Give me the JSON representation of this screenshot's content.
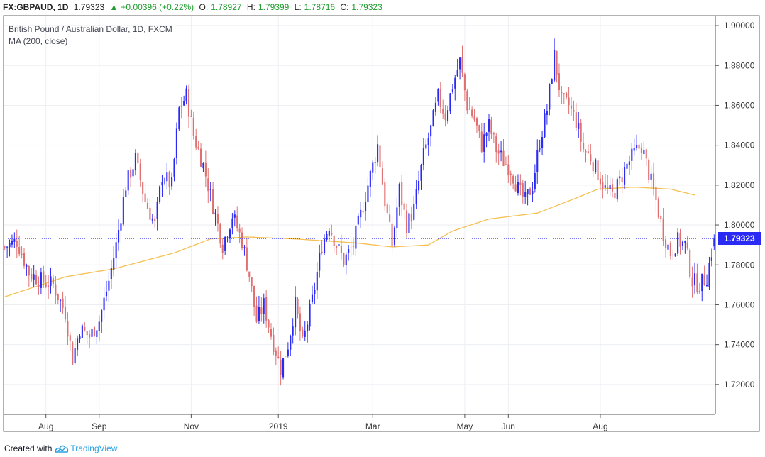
{
  "header": {
    "symbol": "FX:GBPAUD, 1D",
    "last": "1.79323",
    "change": "+0.00396 (+0.22%)",
    "open_label": "O:",
    "open": "1.78927",
    "high_label": "H:",
    "high": "1.79399",
    "low_label": "L:",
    "low": "1.78716",
    "close_label": "C:",
    "close": "1.79323"
  },
  "legend": {
    "title": "British Pound / Australian Dollar, 1D, FXCM",
    "indicator": "MA (200, close)"
  },
  "footer": {
    "created_with": "Created with",
    "brand": "TradingView"
  },
  "colors": {
    "up": "#2a2af5",
    "down": "#e07070",
    "ma": "#f5c051",
    "grid": "#eceef2",
    "price_line": "#2a2af5"
  },
  "chart_data": {
    "type": "candlestick",
    "title": "British Pound / Australian Dollar, 1D, FXCM",
    "ylim": [
      1.705,
      1.905
    ],
    "y_ticks": [
      "1.72000",
      "1.74000",
      "1.76000",
      "1.78000",
      "1.80000",
      "1.82000",
      "1.84000",
      "1.86000",
      "1.88000",
      "1.90000"
    ],
    "x_ticks": [
      "Aug",
      "Sep",
      "Nov",
      "2019",
      "Mar",
      "May",
      "Jun",
      "Aug"
    ],
    "last_price": "1.79323",
    "grid": true,
    "close_anchors": [
      [
        0,
        1.789
      ],
      [
        5,
        1.792
      ],
      [
        10,
        1.776
      ],
      [
        15,
        1.772
      ],
      [
        20,
        1.77
      ],
      [
        25,
        1.756
      ],
      [
        28,
        1.733
      ],
      [
        31,
        1.748
      ],
      [
        35,
        1.744
      ],
      [
        39,
        1.752
      ],
      [
        43,
        1.772
      ],
      [
        46,
        1.79
      ],
      [
        50,
        1.82
      ],
      [
        54,
        1.833
      ],
      [
        58,
        1.812
      ],
      [
        62,
        1.8
      ],
      [
        65,
        1.825
      ],
      [
        69,
        1.82
      ],
      [
        72,
        1.858
      ],
      [
        75,
        1.865
      ],
      [
        78,
        1.845
      ],
      [
        82,
        1.83
      ],
      [
        86,
        1.81
      ],
      [
        90,
        1.79
      ],
      [
        94,
        1.805
      ],
      [
        98,
        1.792
      ],
      [
        101,
        1.775
      ],
      [
        104,
        1.752
      ],
      [
        107,
        1.76
      ],
      [
        110,
        1.745
      ],
      [
        114,
        1.728
      ],
      [
        117,
        1.74
      ],
      [
        120,
        1.76
      ],
      [
        123,
        1.74
      ],
      [
        127,
        1.762
      ],
      [
        131,
        1.79
      ],
      [
        134,
        1.8
      ],
      [
        137,
        1.79
      ],
      [
        140,
        1.782
      ],
      [
        144,
        1.79
      ],
      [
        147,
        1.805
      ],
      [
        151,
        1.825
      ],
      [
        154,
        1.84
      ],
      [
        157,
        1.812
      ],
      [
        160,
        1.79
      ],
      [
        163,
        1.818
      ],
      [
        166,
        1.8
      ],
      [
        169,
        1.808
      ],
      [
        173,
        1.835
      ],
      [
        176,
        1.848
      ],
      [
        179,
        1.864
      ],
      [
        182,
        1.855
      ],
      [
        185,
        1.87
      ],
      [
        188,
        1.882
      ],
      [
        191,
        1.86
      ],
      [
        194,
        1.853
      ],
      [
        197,
        1.84
      ],
      [
        200,
        1.85
      ],
      [
        203,
        1.838
      ],
      [
        206,
        1.832
      ],
      [
        209,
        1.828
      ],
      [
        212,
        1.818
      ],
      [
        215,
        1.812
      ],
      [
        218,
        1.82
      ],
      [
        221,
        1.842
      ],
      [
        224,
        1.858
      ],
      [
        227,
        1.885
      ],
      [
        230,
        1.862
      ],
      [
        233,
        1.86
      ],
      [
        236,
        1.852
      ],
      [
        239,
        1.838
      ],
      [
        242,
        1.834
      ],
      [
        245,
        1.826
      ],
      [
        248,
        1.818
      ],
      [
        251,
        1.815
      ],
      [
        254,
        1.822
      ],
      [
        257,
        1.83
      ],
      [
        260,
        1.836
      ],
      [
        263,
        1.84
      ],
      [
        266,
        1.826
      ],
      [
        269,
        1.812
      ],
      [
        272,
        1.796
      ],
      [
        275,
        1.786
      ],
      [
        278,
        1.792
      ],
      [
        281,
        1.79
      ],
      [
        284,
        1.772
      ],
      [
        287,
        1.77
      ],
      [
        290,
        1.774
      ],
      [
        293,
        1.793
      ]
    ],
    "ma_anchors": [
      [
        0,
        1.764
      ],
      [
        25,
        1.774
      ],
      [
        45,
        1.778
      ],
      [
        70,
        1.786
      ],
      [
        85,
        1.793
      ],
      [
        100,
        1.794
      ],
      [
        120,
        1.793
      ],
      [
        145,
        1.791
      ],
      [
        160,
        1.789
      ],
      [
        175,
        1.79
      ],
      [
        185,
        1.797
      ],
      [
        200,
        1.803
      ],
      [
        220,
        1.806
      ],
      [
        235,
        1.813
      ],
      [
        245,
        1.818
      ],
      [
        260,
        1.819
      ],
      [
        275,
        1.818
      ],
      [
        285,
        1.815
      ]
    ]
  }
}
